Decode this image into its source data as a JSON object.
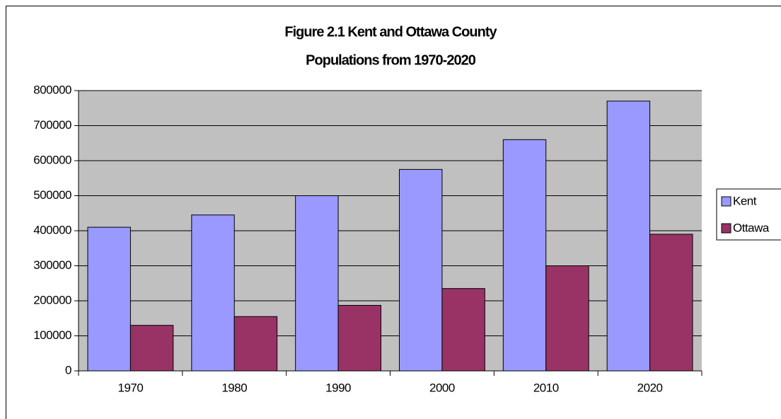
{
  "chart_data": {
    "type": "bar",
    "title": [
      "Figure 2.1  Kent and Ottawa County",
      "Populations from 1970-2020"
    ],
    "categories": [
      "1970",
      "1980",
      "1990",
      "2000",
      "2010",
      "2020"
    ],
    "series": [
      {
        "name": "Kent",
        "color": "#9999ff",
        "values": [
          410000,
          445000,
          500000,
          575000,
          660000,
          770000
        ]
      },
      {
        "name": "Ottawa",
        "color": "#993366",
        "values": [
          130000,
          155000,
          187000,
          235000,
          300000,
          390000
        ]
      }
    ],
    "ylim": [
      0,
      800000
    ],
    "yticks": [
      0,
      100000,
      200000,
      300000,
      400000,
      500000,
      600000,
      700000,
      800000
    ],
    "grid": true,
    "legend": "right"
  }
}
